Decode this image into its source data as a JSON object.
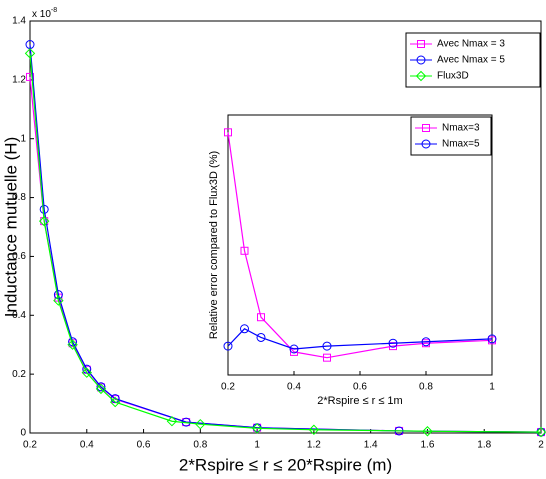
{
  "chart_data": [
    {
      "type": "line",
      "y_label": "Inductance mutuelle (H)",
      "x_label": "2*Rspire ≤ r ≤ 20*Rspire (m)",
      "y_multiplier": "x 10",
      "y_multiplier_exponent": "-8",
      "xlim": [
        0.2,
        2
      ],
      "xticks": [
        0.2,
        0.4,
        0.6,
        0.8,
        1,
        1.2,
        1.4,
        1.6,
        1.8,
        2
      ],
      "ylim": [
        0,
        1.4
      ],
      "yticks": [
        0,
        0.2,
        0.4,
        0.6,
        0.8,
        1,
        1.2,
        1.4
      ],
      "legend": "upper-right",
      "series": [
        {
          "name": "Avec Nmax = 3",
          "color": "#ff00ff",
          "marker": "square",
          "x": [
            0.2,
            0.25,
            0.3,
            0.35,
            0.4,
            0.45,
            0.5,
            0.75,
            1,
            1.5,
            2
          ],
          "values": [
            1.21,
            0.72,
            0.46,
            0.305,
            0.215,
            0.155,
            0.115,
            0.037,
            0.018,
            0.007,
            0.003
          ]
        },
        {
          "name": "Avec Nmax = 5",
          "color": "#0000ff",
          "marker": "circle",
          "x": [
            0.2,
            0.25,
            0.3,
            0.35,
            0.4,
            0.45,
            0.5,
            0.75,
            1,
            1.5,
            2
          ],
          "values": [
            1.32,
            0.76,
            0.47,
            0.31,
            0.217,
            0.157,
            0.117,
            0.037,
            0.018,
            0.007,
            0.003
          ]
        },
        {
          "name": "Flux3D",
          "color": "#00ff00",
          "marker": "diamond",
          "x": [
            0.2,
            0.25,
            0.3,
            0.35,
            0.4,
            0.45,
            0.5,
            0.7,
            0.8,
            1,
            1.2,
            1.6,
            2
          ],
          "values": [
            1.29,
            0.72,
            0.45,
            0.3,
            0.205,
            0.15,
            0.105,
            0.04,
            0.03,
            0.016,
            0.011,
            0.006,
            0.003
          ]
        }
      ]
    },
    {
      "type": "line",
      "y_label": "Relative error compared to Flux3D (%)",
      "x_label": "2*Rspire ≤ r ≤ 1m",
      "xlim": [
        0.2,
        1
      ],
      "xticks": [
        0.2,
        0.4,
        0.6,
        0.8,
        1
      ],
      "ylim": [
        0,
        9
      ],
      "legend": "upper-left",
      "series": [
        {
          "name": "Nmax=3",
          "color": "#ff00ff",
          "marker": "square",
          "x": [
            0.2,
            0.25,
            0.3,
            0.4,
            0.5,
            0.7,
            0.8,
            1
          ],
          "values": [
            8.4,
            4.3,
            2.0,
            0.8,
            0.6,
            1.0,
            1.1,
            1.2
          ]
        },
        {
          "name": "Nmax=5",
          "color": "#0000ff",
          "marker": "circle",
          "x": [
            0.2,
            0.25,
            0.3,
            0.4,
            0.5,
            0.7,
            0.8,
            1
          ],
          "values": [
            1.0,
            1.6,
            1.3,
            0.9,
            1.0,
            1.1,
            1.15,
            1.25
          ]
        }
      ]
    }
  ]
}
